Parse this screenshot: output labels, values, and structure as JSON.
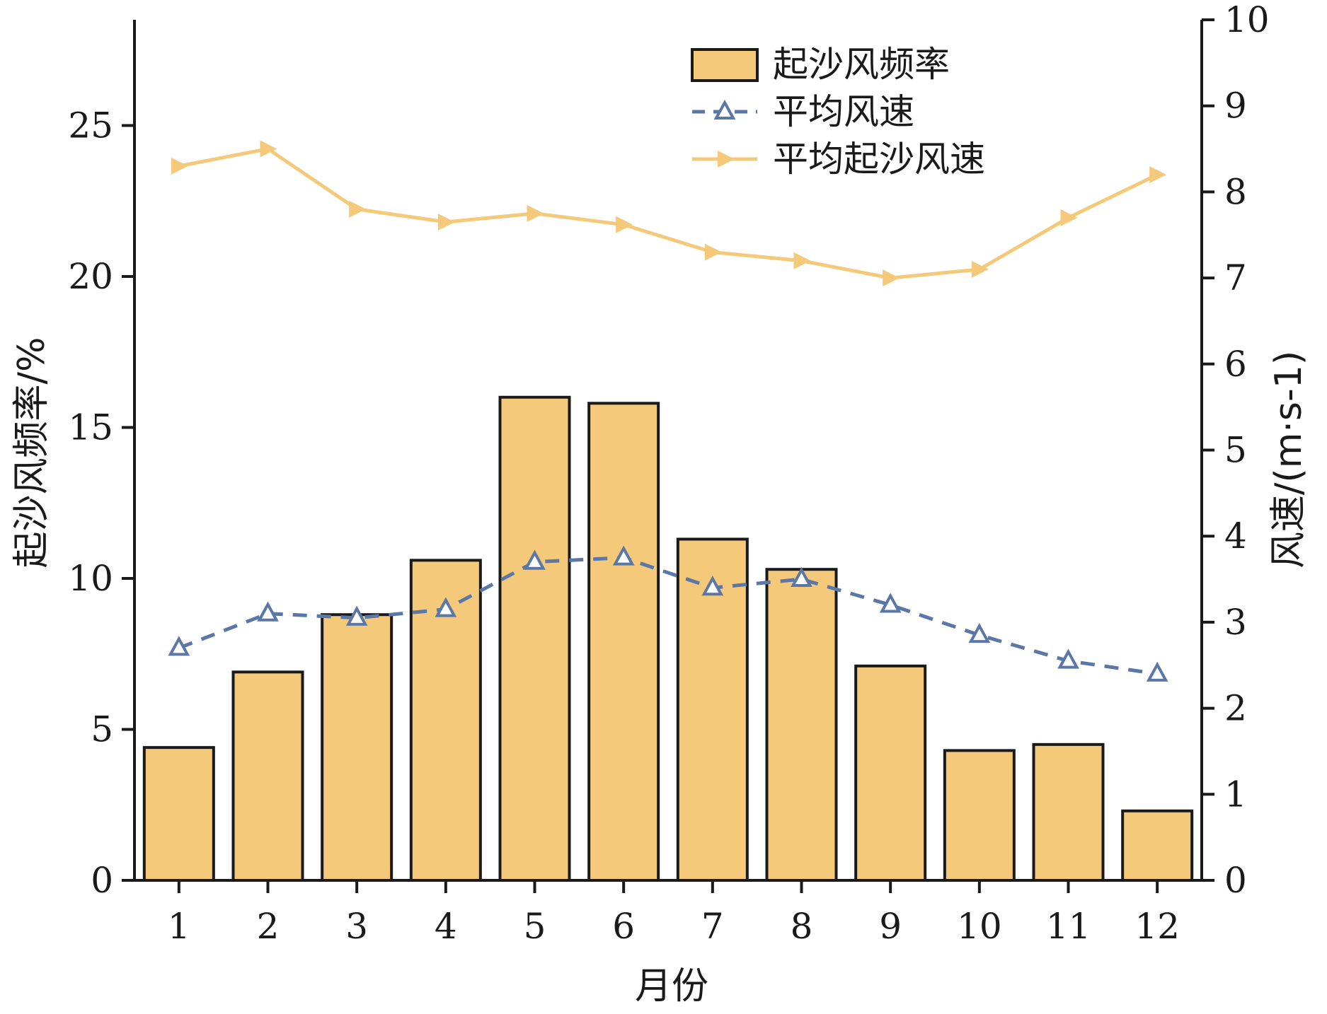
{
  "chart_data": {
    "type": "bar",
    "categories": [
      "1",
      "2",
      "3",
      "4",
      "5",
      "6",
      "7",
      "8",
      "9",
      "10",
      "11",
      "12"
    ],
    "series": [
      {
        "name": "起沙风频率",
        "type": "bar",
        "axis": "left",
        "color": "#f5c97a",
        "values": [
          4.4,
          6.9,
          8.8,
          10.6,
          16.0,
          15.8,
          11.3,
          10.3,
          7.1,
          4.3,
          4.5,
          2.3
        ]
      },
      {
        "name": "平均风速",
        "type": "line",
        "axis": "right",
        "color": "#5b77a8",
        "line_style": "dashed",
        "marker": "triangle-up",
        "values": [
          2.7,
          3.1,
          3.05,
          3.15,
          3.7,
          3.75,
          3.4,
          3.5,
          3.2,
          2.85,
          2.55,
          2.4
        ]
      },
      {
        "name": "平均起沙风速",
        "type": "line",
        "axis": "right",
        "color": "#f5c97a",
        "line_style": "solid",
        "marker": "triangle-right",
        "values": [
          8.3,
          8.5,
          7.8,
          7.65,
          7.75,
          7.62,
          7.3,
          7.2,
          7.0,
          7.1,
          7.7,
          8.2
        ]
      }
    ],
    "xlabel": "月份",
    "ylabel_left": "起沙风频率/%",
    "ylabel_right": "风速/(m·s-1)",
    "ylim_left": [
      0,
      28.5
    ],
    "ylim_right": [
      0,
      10
    ],
    "yticks_left": [
      0,
      5,
      10,
      15,
      20,
      25
    ],
    "yticks_right": [
      0,
      1,
      2,
      3,
      4,
      5,
      6,
      7,
      8,
      9,
      10
    ],
    "grid": false,
    "legend_position": "top-right"
  }
}
